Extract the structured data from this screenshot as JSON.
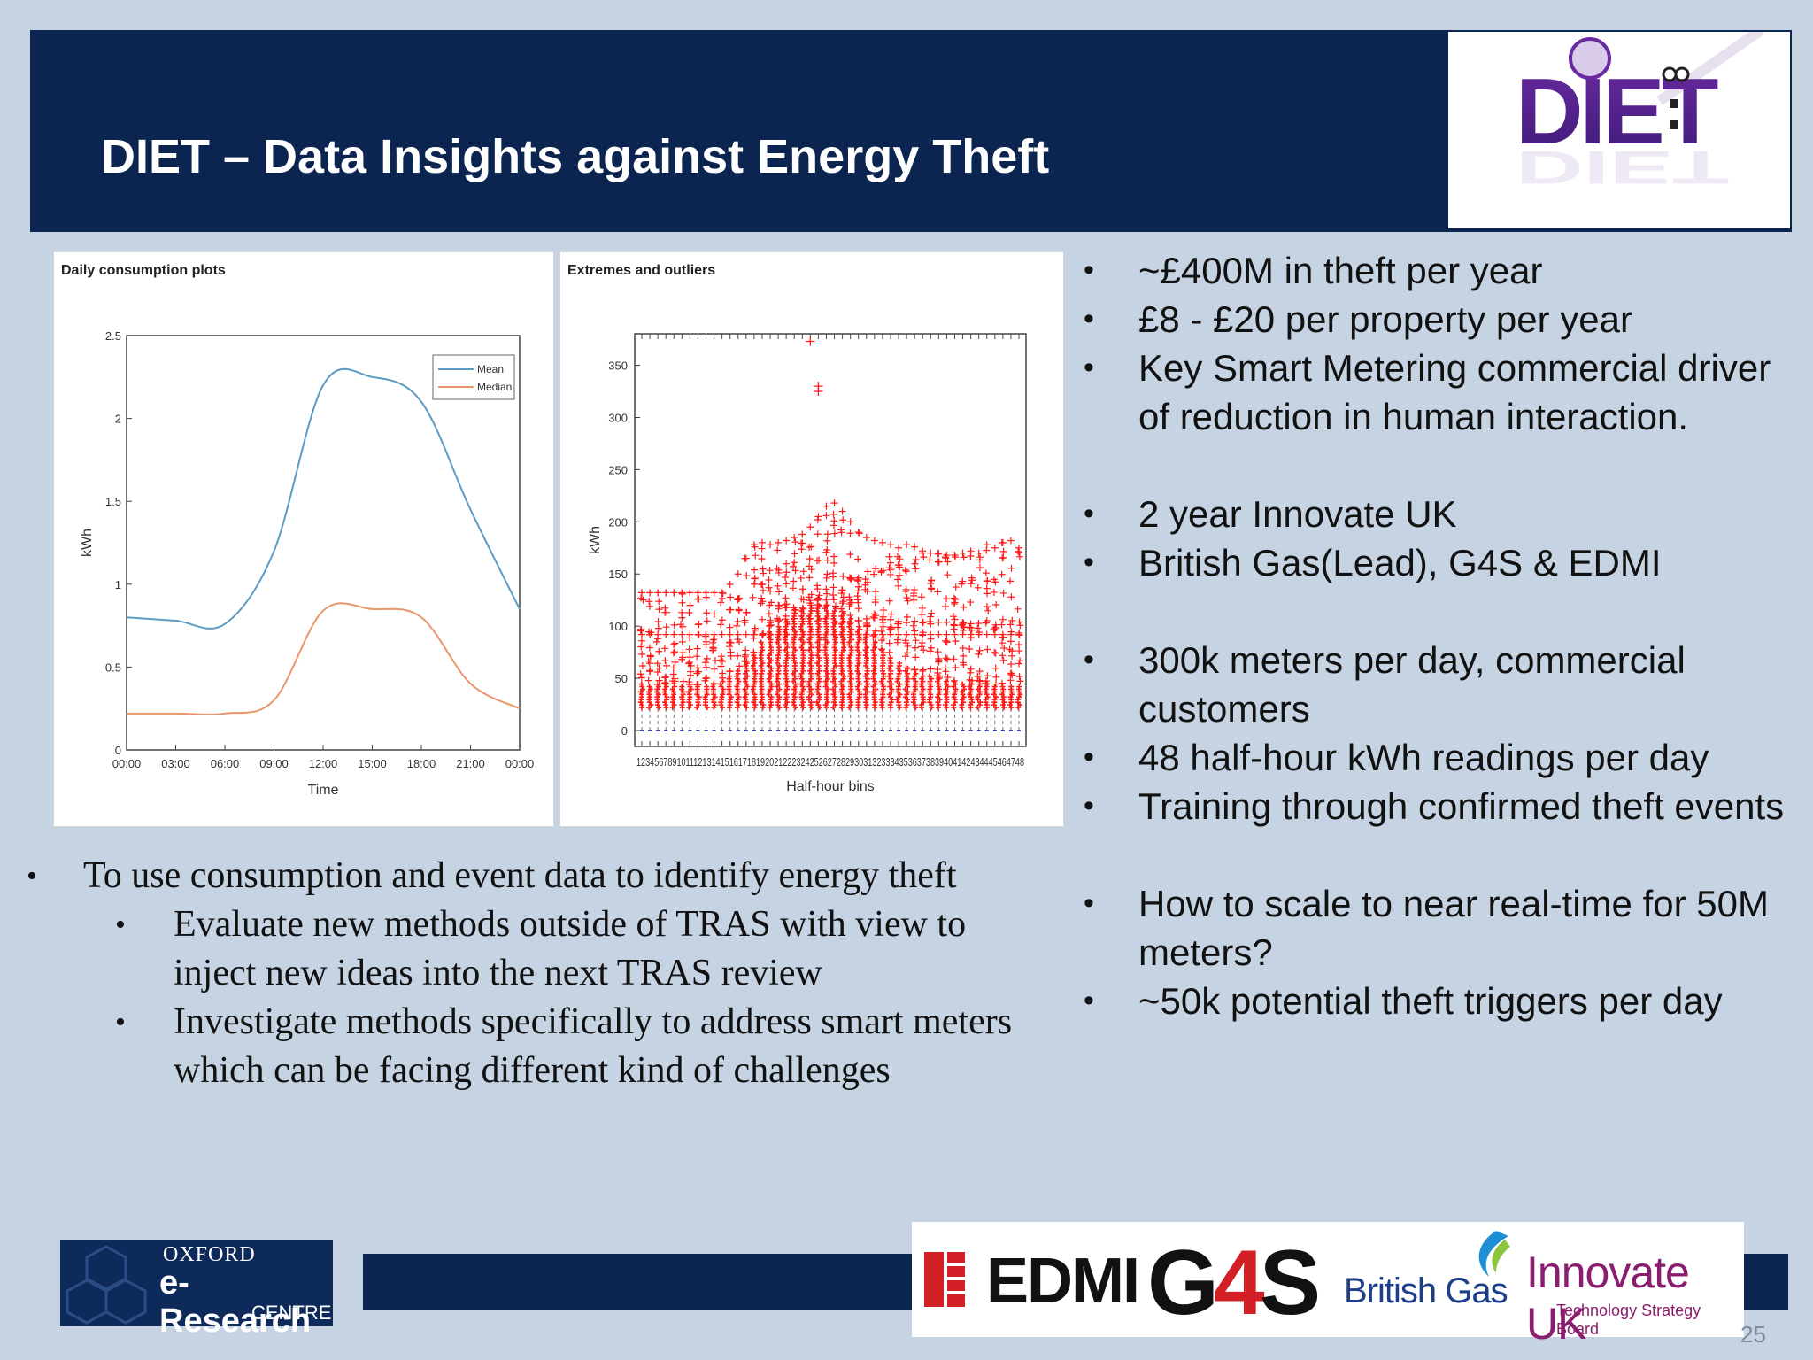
{
  "slide": {
    "title": "DIET – Data Insights against Energy Theft",
    "page_number": "25"
  },
  "logo": {
    "text": "DIET"
  },
  "colors": {
    "header": "#0c2550",
    "background": "#c5d3e3",
    "mean_line": "#5b9bc4",
    "median_line": "#e8966a",
    "outlier": "#ff1a1a",
    "innovate": "#8a1d6e",
    "g4s_red": "#d31f26",
    "british_gas_blue": "#1d3f8a"
  },
  "right_bullets": {
    "group1": [
      "~£400M in theft per year",
      "£8 - £20 per property per year",
      "Key Smart Metering commercial driver of reduction in human interaction."
    ],
    "group2": [
      "2 year Innovate UK",
      "British Gas(Lead), G4S & EDMI"
    ],
    "group3": [
      "300k meters per day, commercial customers",
      "48 half-hour kWh readings per day",
      "Training through confirmed theft events"
    ],
    "group4": [
      "How to scale to near real-time for 50M meters?",
      "~50k potential theft triggers per day"
    ]
  },
  "left_bullets": {
    "main": "To use consumption and event data to identify energy theft",
    "sub": [
      "Evaluate new methods outside of TRAS with view to inject new ideas into the next TRAS review",
      "Investigate methods specifically to address smart meters which can be facing different kind of challenges"
    ]
  },
  "footer": {
    "oxford_line1": "OXFORD",
    "oxford_line2": "e-Research",
    "oxford_line3": "CENTRE",
    "edmi": "EDMI",
    "g4s_g": "G",
    "g4s_4": "4",
    "g4s_s": "S",
    "british_gas": "British Gas",
    "innovate": "Innovate UK",
    "innovate_sub": "Technology Strategy Board"
  },
  "chart_data": [
    {
      "type": "line",
      "title": "Daily consumption plots",
      "xlabel": "Time",
      "ylabel": "kWh",
      "x": [
        "00:00",
        "03:00",
        "06:00",
        "09:00",
        "12:00",
        "15:00",
        "18:00",
        "21:00",
        "00:00"
      ],
      "xticks": [
        "00:00",
        "03:00",
        "06:00",
        "09:00",
        "12:00",
        "15:00",
        "18:00",
        "21:00",
        "00:00"
      ],
      "ylim": [
        0,
        2.5
      ],
      "yticks": [
        "0",
        "0.5",
        "1",
        "1.5",
        "2",
        "2.5"
      ],
      "legend_position": "top-right",
      "series": [
        {
          "name": "Mean",
          "values": [
            0.8,
            0.78,
            0.76,
            1.2,
            2.2,
            2.25,
            2.1,
            1.45,
            0.85
          ]
        },
        {
          "name": "Median",
          "values": [
            0.22,
            0.22,
            0.22,
            0.3,
            0.84,
            0.85,
            0.8,
            0.4,
            0.25
          ]
        }
      ]
    },
    {
      "type": "scatter",
      "title": "Extremes and outliers",
      "xlabel": "Half-hour bins",
      "ylabel": "kWh",
      "xtick_labels": "123456789101112131415161718192021222324252627282930313233343536373839404142434445464748",
      "xlim": [
        1,
        48
      ],
      "ylim": [
        0,
        370
      ],
      "yticks": [
        "0",
        "50",
        "100",
        "150",
        "200",
        "250",
        "300",
        "350"
      ],
      "upper_envelope": [
        132,
        132,
        132,
        132,
        132,
        132,
        132,
        132,
        132,
        132,
        132,
        140,
        150,
        165,
        178,
        180,
        178,
        180,
        182,
        185,
        188,
        195,
        205,
        215,
        218,
        210,
        200,
        190,
        185,
        182,
        180,
        178,
        175,
        178,
        176,
        172,
        170,
        170,
        168,
        168,
        170,
        172,
        170,
        178,
        175,
        180,
        182,
        175
      ],
      "dense_top": [
        45,
        44,
        44,
        44,
        44,
        44,
        43,
        43,
        44,
        45,
        48,
        52,
        58,
        66,
        75,
        85,
        95,
        100,
        106,
        112,
        116,
        118,
        120,
        120,
        118,
        114,
        108,
        100,
        94,
        86,
        78,
        70,
        65,
        60,
        56,
        54,
        52,
        50,
        48,
        47,
        46,
        46,
        45,
        45,
        44,
        44,
        44,
        44
      ],
      "extreme_points": [
        {
          "bin": 22,
          "value": 373
        },
        {
          "bin": 23,
          "value": 330
        },
        {
          "bin": 23,
          "value": 325
        }
      ]
    }
  ]
}
